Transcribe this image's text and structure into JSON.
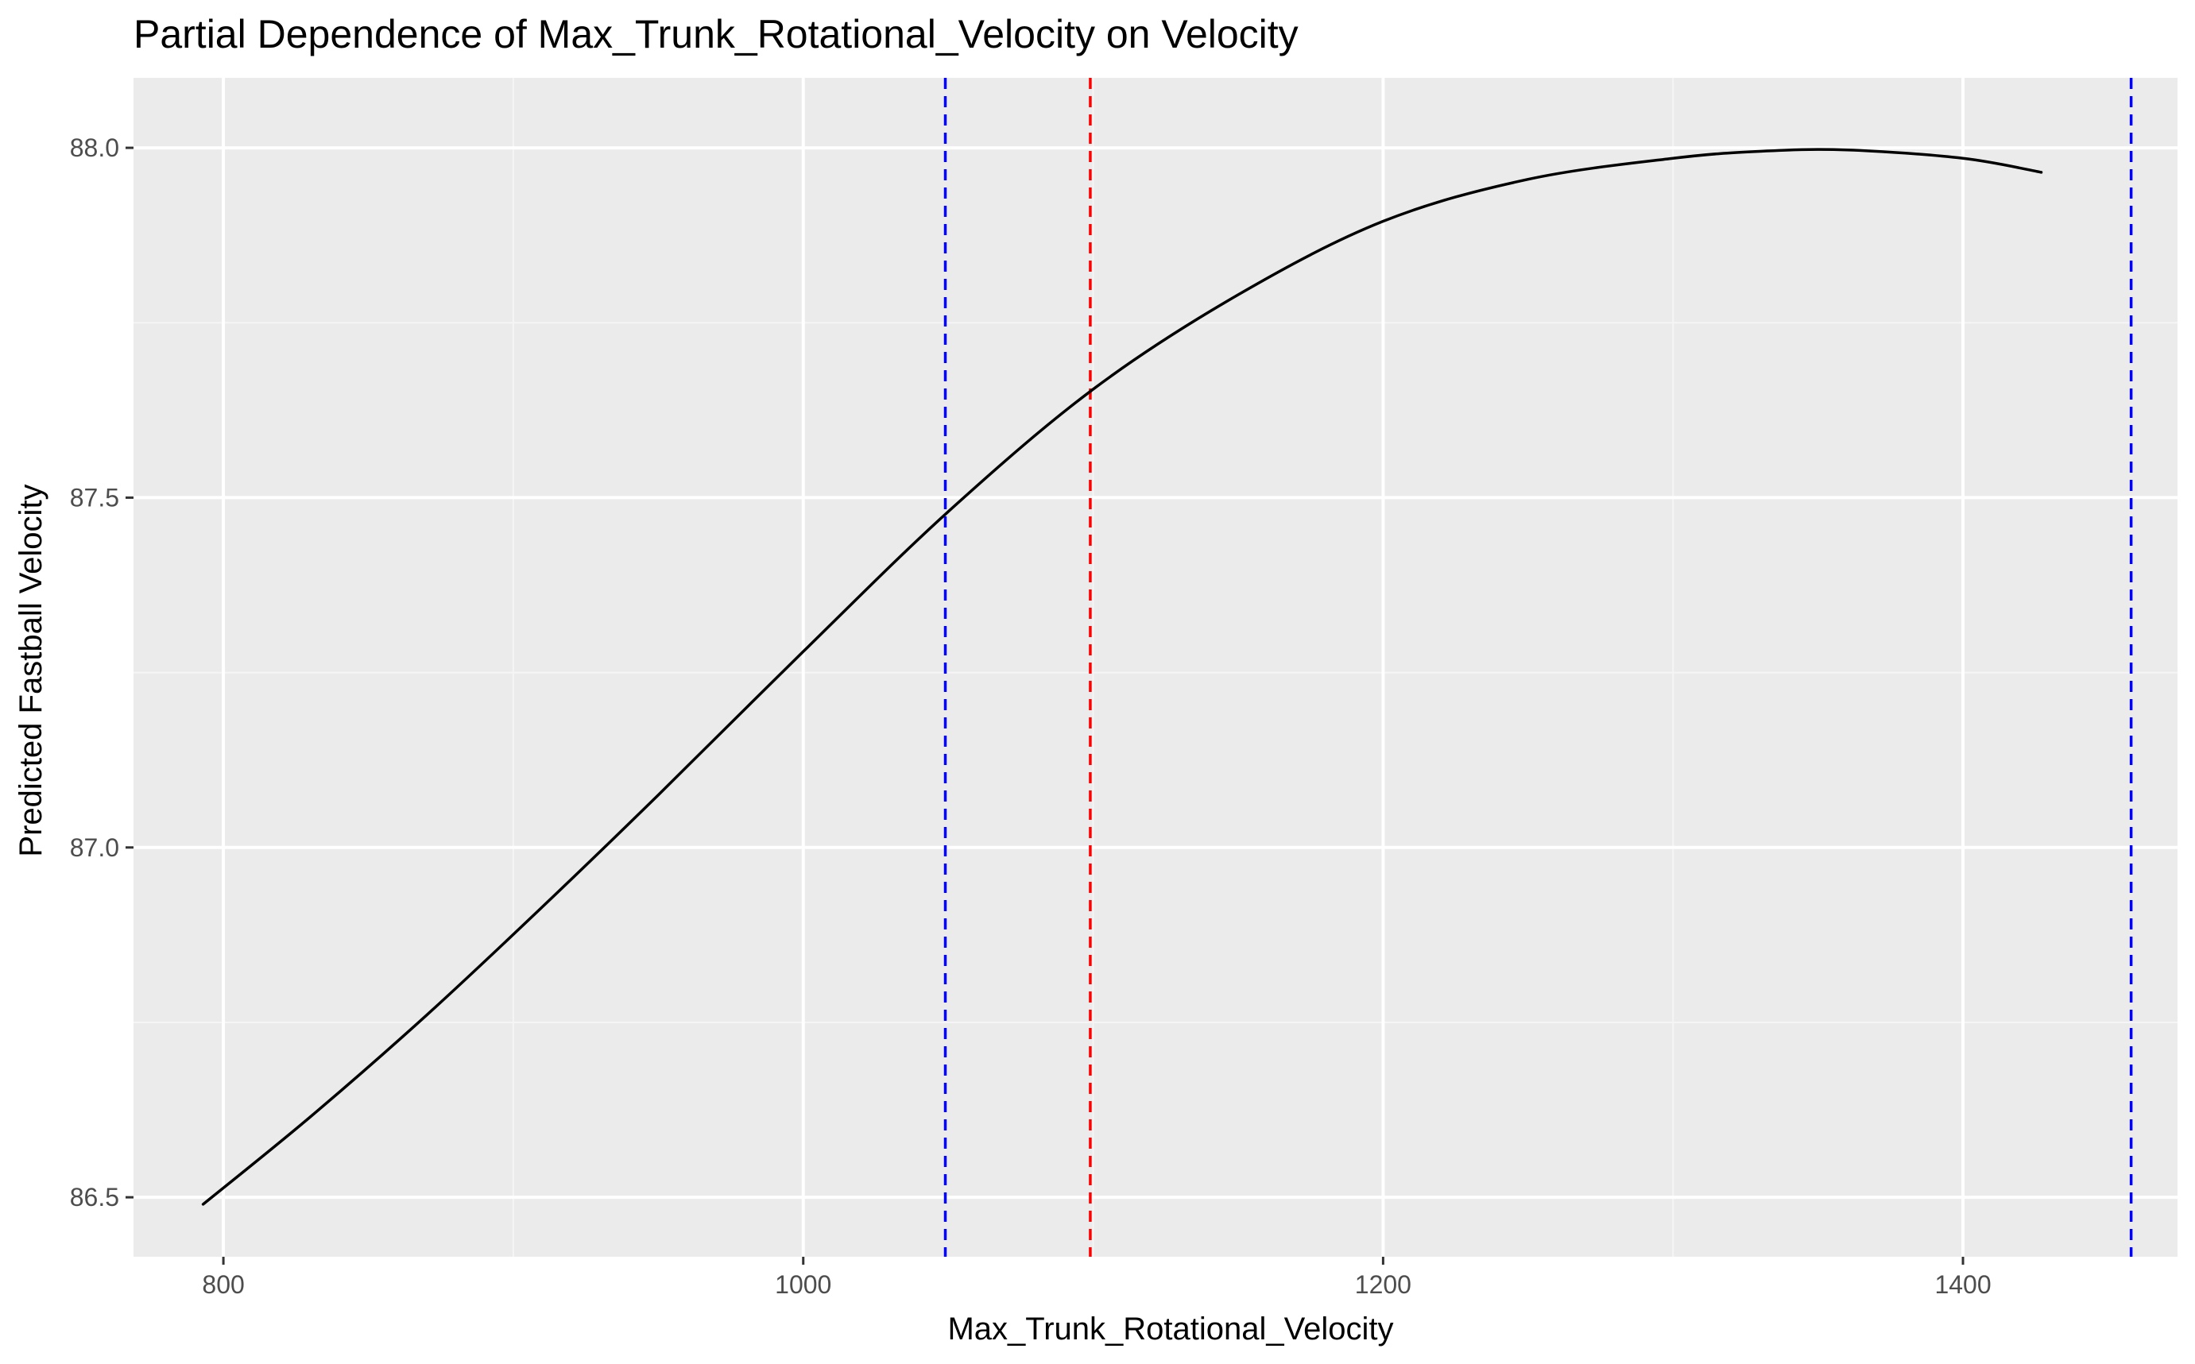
{
  "chart_data": {
    "type": "line",
    "title": "Partial Dependence of Max_Trunk_Rotational_Velocity on Velocity",
    "xlabel": "Max_Trunk_Rotational_Velocity",
    "ylabel": "Predicted Fastball Velocity",
    "xlim": [
      769,
      1474
    ],
    "ylim": [
      86.415,
      88.1
    ],
    "x_ticks": [
      800,
      1000,
      1200,
      1400
    ],
    "x_tick_labels": [
      "800",
      "1000",
      "1200",
      "1400"
    ],
    "x_minor_ticks": [
      900,
      1100,
      1300
    ],
    "y_ticks": [
      86.5,
      87.0,
      87.5,
      88.0
    ],
    "y_tick_labels": [
      "86.5",
      "87.0",
      "87.5",
      "88.0"
    ],
    "y_minor_ticks": [
      86.75,
      87.25,
      87.75
    ],
    "grid": true,
    "series": [
      {
        "color": "#000000",
        "x": [
          793,
          830,
          870,
          910,
          950,
          1000,
          1050,
          1100,
          1150,
          1200,
          1250,
          1300,
          1330,
          1360,
          1400,
          1427
        ],
        "y": [
          86.49,
          86.615,
          86.76,
          86.915,
          87.075,
          87.28,
          87.48,
          87.655,
          87.79,
          87.895,
          87.955,
          87.985,
          87.995,
          87.997,
          87.985,
          87.965
        ]
      }
    ],
    "vlines": [
      {
        "x": 1049,
        "color": "#0000ff",
        "style": "dashed"
      },
      {
        "x": 1099,
        "color": "#ff0000",
        "style": "dashed"
      },
      {
        "x": 1458,
        "color": "#0000ff",
        "style": "dashed"
      }
    ],
    "colors": {
      "panel_background": "#ebebeb",
      "grid_major": "#ffffff",
      "grid_minor": "#f5f5f5",
      "tick_text": "#4d4d4d",
      "tick_mark": "#333333"
    }
  }
}
